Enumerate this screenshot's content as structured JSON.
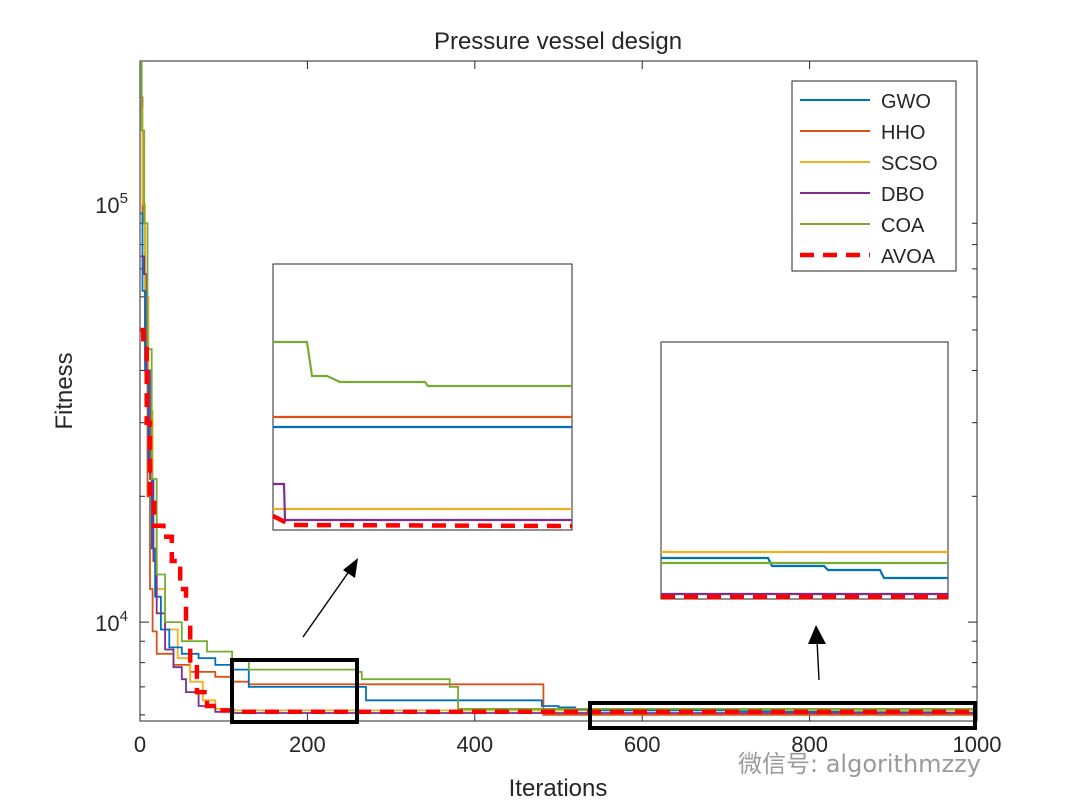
{
  "chart_data": {
    "type": "line",
    "title": "Pressure vessel design",
    "xlabel": "Iterations",
    "ylabel": "Fitness",
    "xlim": [
      0,
      1000
    ],
    "ylim": [
      5800,
      220000
    ],
    "yscale": "log",
    "x_ticks": [
      "0",
      "200",
      "400",
      "600",
      "800",
      "1000"
    ],
    "y_ticks": [
      {
        "base": "10",
        "exp": "4"
      },
      {
        "base": "10",
        "exp": "5"
      }
    ],
    "legend_position": "top-right",
    "series": [
      {
        "name": "GWO",
        "color": "#0072BD",
        "dashed": false,
        "points": [
          [
            1,
            95000
          ],
          [
            3,
            62000
          ],
          [
            6,
            40000
          ],
          [
            10,
            24000
          ],
          [
            14,
            15000
          ],
          [
            18,
            11500
          ],
          [
            25,
            9600
          ],
          [
            35,
            8700
          ],
          [
            50,
            8400
          ],
          [
            70,
            8200
          ],
          [
            90,
            7900
          ],
          [
            110,
            7700
          ],
          [
            130,
            7000
          ],
          [
            260,
            7000
          ],
          [
            270,
            6500
          ],
          [
            480,
            6300
          ],
          [
            500,
            6250
          ],
          [
            520,
            6180
          ],
          [
            540,
            6150
          ],
          [
            650,
            6150
          ],
          [
            700,
            6120
          ],
          [
            760,
            6100
          ],
          [
            850,
            6085
          ],
          [
            950,
            6070
          ],
          [
            1000,
            6059
          ]
        ]
      },
      {
        "name": "HHO",
        "color": "#D95319",
        "dashed": false,
        "points": [
          [
            1,
            180000
          ],
          [
            3,
            90000
          ],
          [
            6,
            45000
          ],
          [
            9,
            20000
          ],
          [
            12,
            12000
          ],
          [
            15,
            9500
          ],
          [
            20,
            8400
          ],
          [
            40,
            7900
          ],
          [
            60,
            7600
          ],
          [
            90,
            7400
          ],
          [
            110,
            7200
          ],
          [
            130,
            7100
          ],
          [
            480,
            7100
          ],
          [
            482,
            6000
          ],
          [
            1000,
            6000
          ]
        ]
      },
      {
        "name": "SCSO",
        "color": "#EDB120",
        "dashed": false,
        "points": [
          [
            1,
            170000
          ],
          [
            3,
            100000
          ],
          [
            6,
            60000
          ],
          [
            10,
            32000
          ],
          [
            15,
            17000
          ],
          [
            20,
            12000
          ],
          [
            30,
            9600
          ],
          [
            45,
            8200
          ],
          [
            60,
            7200
          ],
          [
            75,
            6500
          ],
          [
            90,
            6200
          ],
          [
            110,
            6150
          ],
          [
            1000,
            6150
          ]
        ]
      },
      {
        "name": "DBO",
        "color": "#7E2F8E",
        "dashed": false,
        "points": [
          [
            1,
            75000
          ],
          [
            5,
            68000
          ],
          [
            8,
            40000
          ],
          [
            12,
            22000
          ],
          [
            16,
            14000
          ],
          [
            20,
            10500
          ],
          [
            30,
            8600
          ],
          [
            40,
            7800
          ],
          [
            50,
            7300
          ],
          [
            55,
            6800
          ],
          [
            70,
            6300
          ],
          [
            90,
            6100
          ],
          [
            110,
            6060
          ],
          [
            1000,
            6059
          ]
        ]
      },
      {
        "name": "COA",
        "color": "#77AC30",
        "dashed": false,
        "points": [
          [
            1,
            230000
          ],
          [
            2,
            150000
          ],
          [
            5,
            90000
          ],
          [
            9,
            45000
          ],
          [
            14,
            22000
          ],
          [
            20,
            13000
          ],
          [
            30,
            10000
          ],
          [
            50,
            9000
          ],
          [
            80,
            8500
          ],
          [
            110,
            8100
          ],
          [
            130,
            7700
          ],
          [
            260,
            7600
          ],
          [
            265,
            7300
          ],
          [
            370,
            7000
          ],
          [
            380,
            6200
          ],
          [
            1000,
            6150
          ]
        ]
      },
      {
        "name": "AVOA",
        "color": "#FF0000",
        "dashed": true,
        "points": [
          [
            1,
            50000
          ],
          [
            4,
            45000
          ],
          [
            8,
            30000
          ],
          [
            12,
            20000
          ],
          [
            17,
            17000
          ],
          [
            28,
            16000
          ],
          [
            38,
            14000
          ],
          [
            48,
            12000
          ],
          [
            55,
            10000
          ],
          [
            60,
            8000
          ],
          [
            68,
            6800
          ],
          [
            80,
            6300
          ],
          [
            95,
            6150
          ],
          [
            110,
            6100
          ],
          [
            1000,
            6059
          ]
        ]
      }
    ],
    "annotations": [
      {
        "type": "zoom-box",
        "label": "zoom region 1",
        "x_range": [
          110,
          260
        ],
        "y_range": [
          5850,
          7400
        ]
      },
      {
        "type": "zoom-box",
        "label": "zoom region 2",
        "x_range": [
          540,
          1000
        ],
        "y_range": [
          5850,
          6350
        ]
      }
    ]
  },
  "watermark": "微信号: algorithmzzy"
}
